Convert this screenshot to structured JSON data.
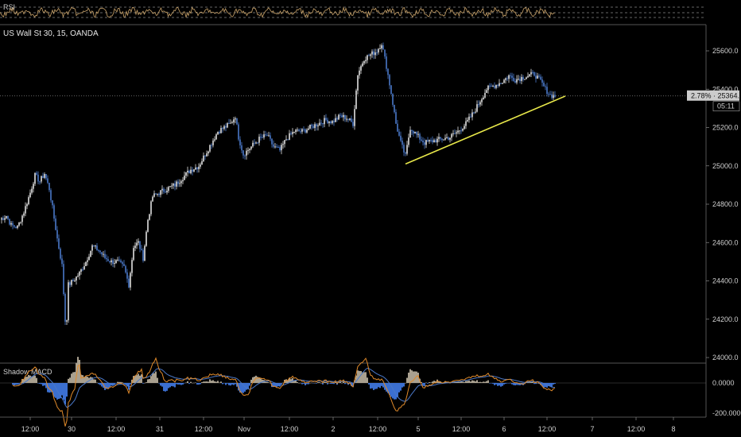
{
  "colors": {
    "background": "#000000",
    "candle_up": "#e0e0e0",
    "candle_down": "#4a78c8",
    "trendline": "#e8e84a",
    "rsi_line": "#c9a36a",
    "macd_line": "#e08a2a",
    "signal_line": "#4a78c8",
    "hist_pos": "#a9a08f",
    "hist_neg": "#3b6fd0",
    "price_tag": "#cccccc"
  },
  "rsi_panel": {
    "label": "RSI"
  },
  "main_panel": {
    "title": "US Wall St 30, 15, OANDA",
    "last_price_tag": "2.78% · 25364.8",
    "countdown": "05:11"
  },
  "macd_panel": {
    "label": "Shadow MACD"
  },
  "chart_data": {
    "type": "candlestick",
    "title": "US Wall St 30, 15, OANDA",
    "y_ticks": [
      "25600.0",
      "25400.0",
      "25200.0",
      "25000.0",
      "24800.0",
      "24600.0",
      "24400.0",
      "24200.0",
      "24000.0"
    ],
    "ylim": [
      23980,
      25720
    ],
    "x_ticks": [
      "12:00",
      "30",
      "12:00",
      "31",
      "12:00",
      "Nov",
      "12:00",
      "2",
      "12:00",
      "5",
      "12:00",
      "6",
      "12:00",
      "7",
      "12:00",
      "8"
    ],
    "price_path_anchors": [
      [
        0,
        24720
      ],
      [
        8,
        24740
      ],
      [
        14,
        24690
      ],
      [
        22,
        24680
      ],
      [
        30,
        24760
      ],
      [
        38,
        24860
      ],
      [
        44,
        24950
      ],
      [
        50,
        24920
      ],
      [
        56,
        24960
      ],
      [
        62,
        24880
      ],
      [
        66,
        24780
      ],
      [
        72,
        24620
      ],
      [
        78,
        24480
      ],
      [
        83,
        24120
      ],
      [
        86,
        24380
      ],
      [
        92,
        24400
      ],
      [
        100,
        24440
      ],
      [
        108,
        24500
      ],
      [
        116,
        24580
      ],
      [
        124,
        24560
      ],
      [
        132,
        24520
      ],
      [
        140,
        24500
      ],
      [
        148,
        24500
      ],
      [
        156,
        24470
      ],
      [
        162,
        24380
      ],
      [
        168,
        24580
      ],
      [
        174,
        24600
      ],
      [
        180,
        24520
      ],
      [
        186,
        24720
      ],
      [
        192,
        24840
      ],
      [
        200,
        24860
      ],
      [
        210,
        24880
      ],
      [
        220,
        24900
      ],
      [
        230,
        24940
      ],
      [
        240,
        24980
      ],
      [
        250,
        25000
      ],
      [
        258,
        25060
      ],
      [
        266,
        25120
      ],
      [
        274,
        25180
      ],
      [
        282,
        25200
      ],
      [
        290,
        25220
      ],
      [
        296,
        25260
      ],
      [
        300,
        25150
      ],
      [
        306,
        25060
      ],
      [
        316,
        25100
      ],
      [
        326,
        25140
      ],
      [
        336,
        25160
      ],
      [
        344,
        25100
      ],
      [
        352,
        25080
      ],
      [
        360,
        25140
      ],
      [
        370,
        25180
      ],
      [
        380,
        25180
      ],
      [
        390,
        25200
      ],
      [
        400,
        25220
      ],
      [
        410,
        25240
      ],
      [
        418,
        25230
      ],
      [
        428,
        25260
      ],
      [
        436,
        25250
      ],
      [
        444,
        25220
      ],
      [
        450,
        25480
      ],
      [
        458,
        25560
      ],
      [
        466,
        25580
      ],
      [
        474,
        25600
      ],
      [
        480,
        25640
      ],
      [
        486,
        25520
      ],
      [
        492,
        25380
      ],
      [
        498,
        25220
      ],
      [
        504,
        25120
      ],
      [
        510,
        25050
      ],
      [
        516,
        25200
      ],
      [
        524,
        25160
      ],
      [
        534,
        25120
      ],
      [
        544,
        25130
      ],
      [
        556,
        25140
      ],
      [
        566,
        25150
      ],
      [
        576,
        25180
      ],
      [
        586,
        25220
      ],
      [
        596,
        25280
      ],
      [
        604,
        25340
      ],
      [
        612,
        25400
      ],
      [
        622,
        25420
      ],
      [
        632,
        25440
      ],
      [
        640,
        25470
      ],
      [
        648,
        25450
      ],
      [
        656,
        25460
      ],
      [
        664,
        25470
      ],
      [
        672,
        25480
      ],
      [
        680,
        25440
      ],
      [
        686,
        25400
      ],
      [
        692,
        25370
      ],
      [
        698,
        25364
      ]
    ],
    "trendline": [
      [
        510,
        25010
      ],
      [
        711,
        25364
      ]
    ],
    "last_price": 25364.8,
    "macd_y_ticks": [
      "0.0000",
      "-200.0000"
    ]
  }
}
